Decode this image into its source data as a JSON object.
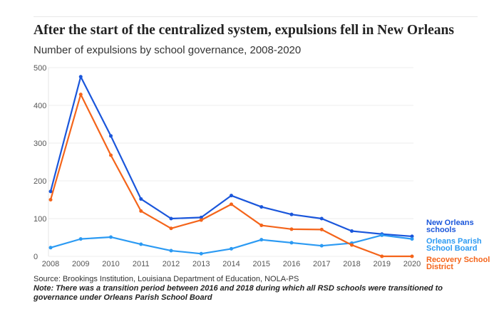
{
  "chart_data": {
    "type": "line",
    "title": "After the start of the centralized system, expulsions fell in New Orleans",
    "subtitle": "Number of expulsions by school governance, 2008-2020",
    "x": [
      2008,
      2009,
      2010,
      2011,
      2012,
      2013,
      2014,
      2015,
      2016,
      2017,
      2018,
      2019,
      2020
    ],
    "x_tick_labels": [
      "2008",
      "2009",
      "2010",
      "2011",
      "2012",
      "2013",
      "2014",
      "2015",
      "2016",
      "2017",
      "2018",
      "2019",
      "2020"
    ],
    "ylim": [
      0,
      500
    ],
    "y_ticks": [
      0,
      100,
      200,
      300,
      400,
      500
    ],
    "y_tick_labels": [
      "0",
      "100",
      "200",
      "300",
      "400",
      "500"
    ],
    "grid": true,
    "legend_placement": "right, inline labels",
    "series": [
      {
        "name": "New Orleans schools",
        "label_lines": [
          "New Orleans",
          "schools"
        ],
        "color": "#1a56db",
        "values": [
          172,
          476,
          319,
          152,
          100,
          103,
          161,
          131,
          111,
          100,
          67,
          59,
          53
        ]
      },
      {
        "name": "Orleans Parish School Board",
        "label_lines": [
          "Orleans Parish",
          "School Board"
        ],
        "color": "#2b9af3",
        "values": [
          23,
          46,
          51,
          32,
          15,
          7,
          20,
          44,
          36,
          28,
          35,
          56,
          46
        ]
      },
      {
        "name": "Recovery School District",
        "label_lines": [
          "Recovery School",
          "District"
        ],
        "color": "#f4641a",
        "values": [
          150,
          429,
          268,
          120,
          74,
          96,
          138,
          82,
          72,
          71,
          30,
          0,
          0
        ]
      }
    ],
    "source": "Source: Brookings Institution, Louisiana Department of Education, NOLA-PS",
    "note": "Note: There was a transition period between 2016 and 2018 during which all RSD schools were transitioned to governance under Orleans Parish School Board"
  }
}
